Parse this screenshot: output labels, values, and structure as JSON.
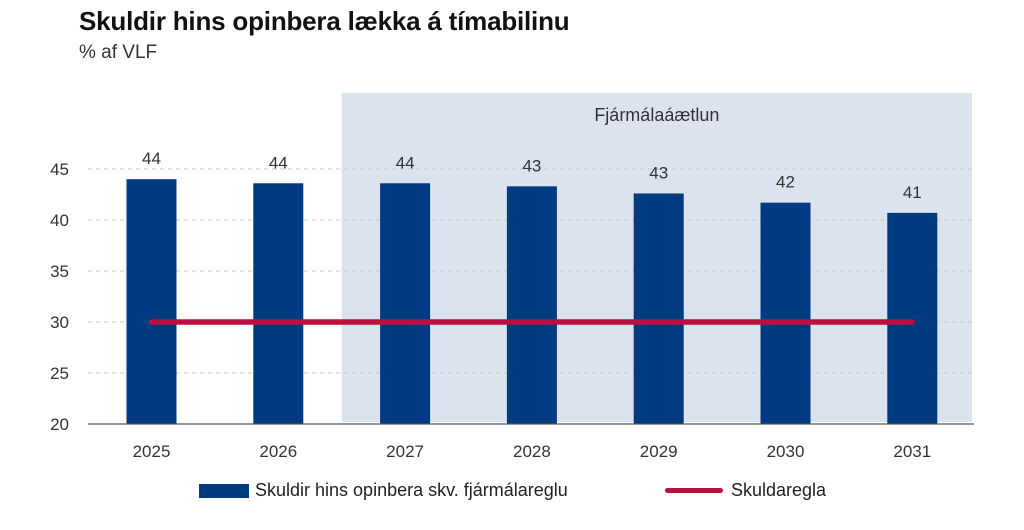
{
  "title": "Skuldir hins opinbera lækka á tímabilinu",
  "subtitle": "% af VLF",
  "colors": {
    "bar": "#003a80",
    "line": "#b8103f",
    "shade": "#dbe3ee",
    "grid": "#c8c8c8",
    "axis": "#555555"
  },
  "chart_data": {
    "type": "bar",
    "categories": [
      "2025",
      "2026",
      "2027",
      "2028",
      "2029",
      "2030",
      "2031"
    ],
    "series": [
      {
        "name": "Skuldir hins opinbera skv. fjármálareglu",
        "type": "bar",
        "values": [
          44.0,
          43.6,
          43.6,
          43.3,
          42.6,
          41.7,
          40.7
        ],
        "labels": [
          "44",
          "44",
          "44",
          "43",
          "43",
          "42",
          "41"
        ]
      },
      {
        "name": "Skuldaregla",
        "type": "line",
        "values": [
          30,
          30,
          30,
          30,
          30,
          30,
          30
        ]
      }
    ],
    "ylim": [
      20,
      45
    ],
    "yticks": [
      20,
      25,
      30,
      35,
      40,
      45
    ],
    "grid": true,
    "shaded_region": {
      "from": "2027",
      "to": "2031",
      "label": "Fjármálaáætlun"
    },
    "legend": "bottom"
  }
}
